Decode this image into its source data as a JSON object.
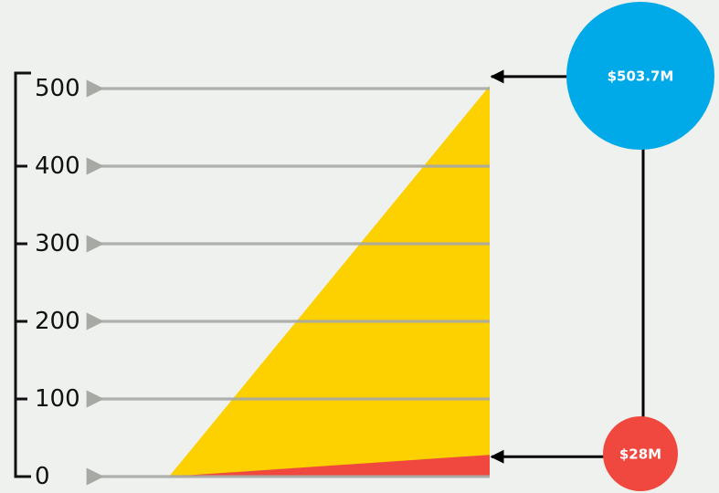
{
  "chart_data": {
    "type": "area",
    "y_ticks": [
      {
        "value": 0,
        "label": "0"
      },
      {
        "value": 100,
        "label": "100"
      },
      {
        "value": 200,
        "label": "200"
      },
      {
        "value": 300,
        "label": "300"
      },
      {
        "value": 400,
        "label": "400"
      },
      {
        "value": 500,
        "label": "500"
      }
    ],
    "ylim": [
      0,
      500
    ],
    "series": [
      {
        "values": [
          0,
          503.7
        ],
        "color": "#fdd000"
      },
      {
        "values": [
          0,
          28
        ],
        "color": "#f0483e"
      }
    ],
    "annotations": [
      {
        "value": 503.7,
        "label": "$503.7M",
        "color": "#00a9e8"
      },
      {
        "value": 28,
        "label": "$28M",
        "color": "#f0483e"
      }
    ],
    "gridline_color": "#a7a9a5"
  }
}
